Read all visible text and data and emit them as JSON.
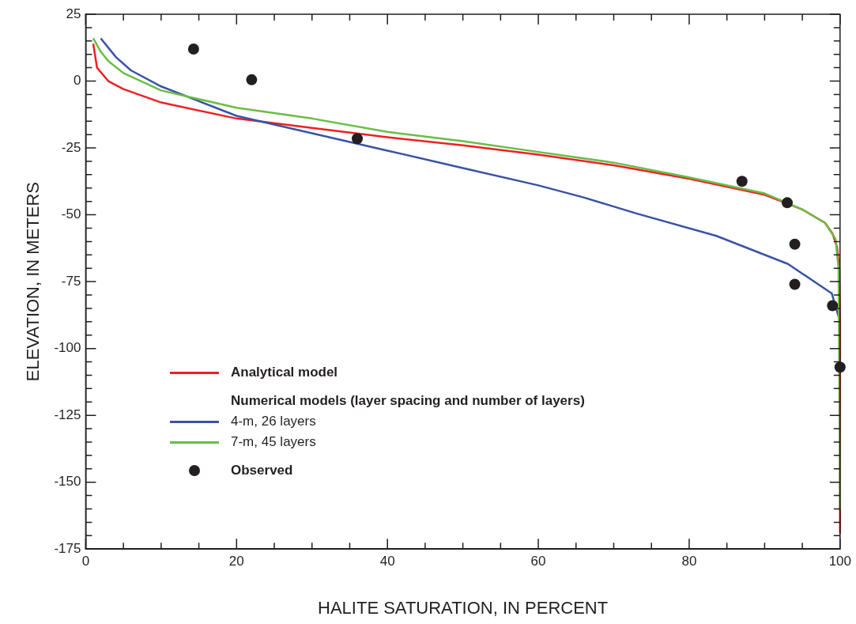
{
  "chart_data": {
    "type": "line",
    "xlabel": "HALITE SATURATION, IN PERCENT",
    "ylabel": "ELEVATION, IN METERS",
    "legend": "bottom left",
    "legend_title": "Numerical models (layer spacing and number of layers)",
    "grid": false,
    "marker": "none",
    "line_style": "solid",
    "xlim": [
      0,
      100
    ],
    "ylim": [
      -175,
      25
    ],
    "xticks": [
      0,
      {
        "value": 5,
        "label": null
      },
      {
        "value": 10,
        "label": null
      },
      {
        "value": 15,
        "label": null
      },
      20,
      {
        "value": 25,
        "label": null
      },
      {
        "value": 30,
        "label": null
      },
      {
        "value": 35,
        "label": null
      },
      40,
      {
        "value": 45,
        "label": null
      },
      {
        "value": 50,
        "label": null
      },
      {
        "value": 55,
        "label": null
      },
      60,
      {
        "value": 65,
        "label": null
      },
      {
        "value": 70,
        "label": null
      },
      {
        "value": 75,
        "label": null
      },
      80,
      {
        "value": 85,
        "label": null
      },
      {
        "value": 90,
        "label": null
      },
      {
        "value": 95,
        "label": null
      },
      100
    ],
    "yticks": [
      -175,
      {
        "value": -170,
        "label": null
      },
      {
        "value": -165,
        "label": null
      },
      {
        "value": -160,
        "label": null
      },
      {
        "value": -155,
        "label": null
      },
      -150,
      {
        "value": -145,
        "label": null
      },
      {
        "value": -140,
        "label": null
      },
      {
        "value": -135,
        "label": null
      },
      {
        "value": -130,
        "label": null
      },
      -125,
      {
        "value": -120,
        "label": null
      },
      {
        "value": -115,
        "label": null
      },
      {
        "value": -110,
        "label": null
      },
      {
        "value": -105,
        "label": null
      },
      -100,
      {
        "value": -95,
        "label": null
      },
      {
        "value": -90,
        "label": null
      },
      {
        "value": -85,
        "label": null
      },
      {
        "value": -80,
        "label": null
      },
      -75,
      {
        "value": -70,
        "label": null
      },
      {
        "value": -65,
        "label": null
      },
      {
        "value": -60,
        "label": null
      },
      {
        "value": -55,
        "label": null
      },
      -50,
      {
        "value": -45,
        "label": null
      },
      {
        "value": -40,
        "label": null
      },
      {
        "value": -35,
        "label": null
      },
      {
        "value": -30,
        "label": null
      },
      -25,
      {
        "value": -20,
        "label": null
      },
      {
        "value": -15,
        "label": null
      },
      {
        "value": -10,
        "label": null
      },
      {
        "value": -5,
        "label": null
      },
      0,
      {
        "value": 5,
        "label": null
      },
      {
        "value": 10,
        "label": null
      },
      {
        "value": 15,
        "label": null
      },
      {
        "value": 20,
        "label": null
      },
      25
    ],
    "series": [
      {
        "name": "Analytical model",
        "color": "#ee2024",
        "x": [
          1,
          1.5,
          3,
          5,
          10,
          20,
          30,
          40,
          50,
          60,
          70,
          80,
          90,
          95,
          98,
          99,
          99.6,
          99.9,
          100,
          100
        ],
        "values": [
          14,
          5,
          0,
          -3,
          -8,
          -14,
          -17.5,
          -21,
          -24,
          -27.5,
          -31.5,
          -36.5,
          -42.5,
          -48,
          -53,
          -57,
          -62,
          -70,
          -90,
          -169
        ]
      },
      {
        "name": "4-m, 26 layers",
        "color": "#3953a4",
        "x": [
          2,
          4,
          6,
          10,
          15,
          20,
          30,
          40,
          50,
          60,
          66,
          73,
          83.6,
          93.1,
          98.9,
          99.9
        ],
        "values": [
          16,
          9,
          4,
          -2,
          -7.5,
          -13,
          -19.5,
          -26,
          -32.5,
          -39,
          -43.5,
          -49.5,
          -57.9,
          -68.4,
          -79.4,
          -89
        ]
      },
      {
        "name": "7-m, 45 layers",
        "color": "#6abd45",
        "x": [
          1,
          2,
          3,
          5,
          10,
          20,
          30,
          40,
          50,
          60,
          70,
          80,
          90,
          95,
          98,
          99.4,
          99.8,
          100
        ],
        "values": [
          16,
          11,
          7.5,
          3,
          -3.5,
          -10,
          -14,
          -19,
          -22.5,
          -26.5,
          -30.5,
          -36,
          -42,
          -48,
          -53,
          -59,
          -70,
          -160
        ]
      },
      {
        "name": "Observed",
        "type": "scatter",
        "marker": "circle",
        "color": "#231f20",
        "x": [
          14.3,
          22,
          36,
          87,
          93,
          94,
          94,
          99,
          100
        ],
        "values": [
          12,
          0.5,
          -21.5,
          -37.5,
          -45.5,
          -61,
          -76,
          -84,
          -107
        ]
      }
    ]
  }
}
